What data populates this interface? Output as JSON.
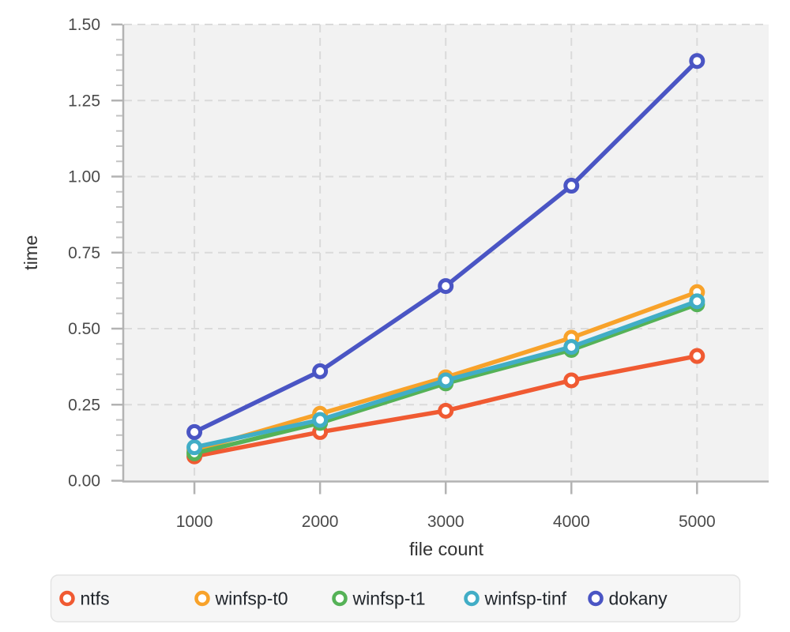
{
  "chart_data": {
    "type": "line",
    "title": "",
    "xlabel": "file count",
    "ylabel": "time",
    "x": [
      1000,
      2000,
      3000,
      4000,
      5000
    ],
    "x_tick_labels": [
      "1000",
      "2000",
      "3000",
      "4000",
      "5000"
    ],
    "y_tick_labels": [
      "0.00",
      "0.25",
      "0.50",
      "0.75",
      "1.00",
      "1.25",
      "1.50"
    ],
    "xlim": [
      440,
      5570
    ],
    "ylim": [
      0,
      1.5
    ],
    "y_major_step": 0.25,
    "y_minor_step": 0.05,
    "grid": "dashed horizontal and vertical",
    "legend_position": "bottom",
    "marker_style": "open-circle",
    "series": [
      {
        "name": "ntfs",
        "color": "#f05a32",
        "values": [
          0.08,
          0.16,
          0.23,
          0.33,
          0.41
        ]
      },
      {
        "name": "winfsp-t0",
        "color": "#f8a22a",
        "values": [
          0.1,
          0.22,
          0.34,
          0.47,
          0.62
        ]
      },
      {
        "name": "winfsp-t1",
        "color": "#55b257",
        "values": [
          0.09,
          0.19,
          0.32,
          0.43,
          0.58
        ]
      },
      {
        "name": "winfsp-tinf",
        "color": "#41adc6",
        "values": [
          0.11,
          0.2,
          0.33,
          0.44,
          0.59
        ]
      },
      {
        "name": "dokany",
        "color": "#4a55c4",
        "values": [
          0.16,
          0.36,
          0.64,
          0.97,
          1.38
        ]
      }
    ]
  },
  "styles": {
    "page_bg": "#ffffff",
    "plot_bg": "#f2f2f2",
    "grid_color": "#dadada",
    "axis_color": "#b3b3b3",
    "minor_tick_color": "#c2c2c2",
    "tick_label_color": "#4a4a4a",
    "axis_title_color": "#333333",
    "legend_bg": "#f6f6f6",
    "legend_border": "#e3e3e3",
    "legend_text_color": "#21262c",
    "marker_fill": "#ffffff"
  }
}
